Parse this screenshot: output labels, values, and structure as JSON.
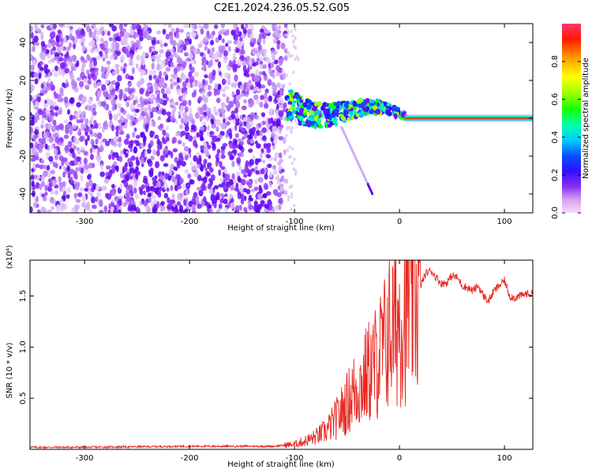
{
  "title": "C2E1.2024.236.05.52.G05",
  "colors": {
    "snr_line": "#e8261f",
    "spectrum_base": "#6a00ff",
    "background": "#ffffff"
  },
  "chart_data": [
    {
      "type": "heatmap",
      "name": "spectrogram",
      "xlabel": "Height of straight line (km)",
      "ylabel": "Frequency (Hz)",
      "xlim": [
        -352,
        127
      ],
      "ylim": [
        -50,
        50
      ],
      "xticks": [
        -300,
        -200,
        -100,
        0,
        100
      ],
      "yticks": [
        -40,
        -20,
        0,
        20,
        40
      ],
      "colorbar": {
        "label": "Normalized spectral amplitude",
        "range": [
          0.0,
          1.0
        ],
        "ticks": [
          0.0,
          0.2,
          0.4,
          0.6,
          0.8
        ],
        "tick_labels": [
          "0.0",
          "0.2",
          "0.4",
          "0.6",
          "0.8"
        ]
      },
      "features": {
        "noise_region_km": [
          -352,
          -108
        ],
        "tracking_transition_km": [
          -108,
          5
        ],
        "locked_signal_km": [
          5,
          127
        ],
        "locked_frequency_hz": 0
      }
    },
    {
      "type": "line",
      "name": "snr",
      "xlabel": "Height of straight line (km)",
      "ylabel": "SNR (10 * v/v)",
      "scale_label": "(x10⁴)",
      "xlim": [
        -352,
        127
      ],
      "ylim": [
        0.0,
        1.85
      ],
      "xticks": [
        -300,
        -200,
        -100,
        0,
        100
      ],
      "yticks": [
        0.5,
        1.0,
        1.5
      ],
      "ytick_labels": [
        "0.5",
        "1.0",
        "1.5"
      ],
      "series": [
        {
          "name": "SNR",
          "x": [
            -352,
            -300,
            -200,
            -120,
            -100,
            -90,
            -80,
            -70,
            -60,
            -50,
            -45,
            -40,
            -35,
            -30,
            -25,
            -20,
            -15,
            -10,
            -5,
            0,
            10,
            20,
            25,
            30,
            35,
            40,
            45,
            50,
            55,
            60,
            65,
            70,
            75,
            80,
            85,
            90,
            95,
            100,
            105,
            110,
            115,
            120,
            127
          ],
          "values": [
            0.02,
            0.02,
            0.03,
            0.03,
            0.05,
            0.08,
            0.12,
            0.18,
            0.3,
            0.45,
            0.55,
            0.6,
            0.65,
            0.75,
            0.8,
            0.9,
            1.0,
            1.15,
            1.2,
            1.3,
            1.45,
            1.6,
            1.72,
            1.75,
            1.68,
            1.62,
            1.63,
            1.7,
            1.68,
            1.6,
            1.58,
            1.55,
            1.6,
            1.5,
            1.45,
            1.55,
            1.6,
            1.65,
            1.5,
            1.48,
            1.5,
            1.52,
            1.52
          ]
        }
      ]
    }
  ]
}
